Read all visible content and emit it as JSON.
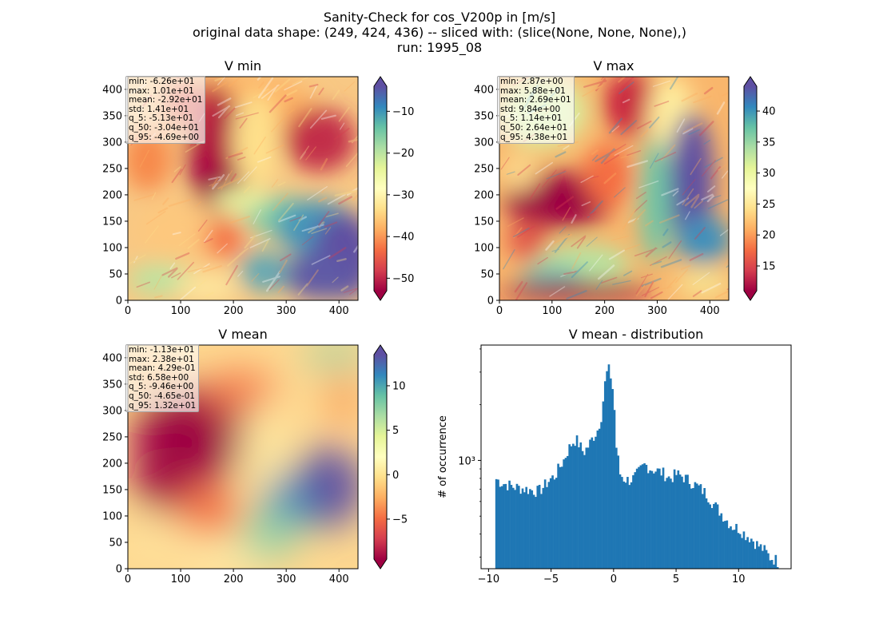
{
  "figure": {
    "suptitle": [
      "Sanity-Check for cos_V200p in [m/s]",
      "original data shape: (249, 424, 436) -- sliced with: (slice(None, None, None),)",
      "run: 1995_08"
    ]
  },
  "colormap": {
    "name": "Spectral",
    "stops": [
      "#9e0142",
      "#d53e4f",
      "#f46d43",
      "#fdae61",
      "#fee08b",
      "#ffffbf",
      "#e6f598",
      "#abdda4",
      "#66c2a5",
      "#3288bd",
      "#5e4fa2"
    ]
  },
  "hist_color": "#1f77b4",
  "chart_data": [
    {
      "type": "heatmap",
      "title": "V min",
      "xlim": [
        0,
        436
      ],
      "ylim": [
        0,
        424
      ],
      "xticks": [
        "0",
        "100",
        "200",
        "300",
        "400"
      ],
      "yticks": [
        "0",
        "50",
        "100",
        "150",
        "200",
        "250",
        "300",
        "350",
        "400"
      ],
      "colorbar": {
        "range": [
          -53,
          -4
        ],
        "ticks": [
          "−10",
          "−20",
          "−30",
          "−40",
          "−50"
        ],
        "tick_values": [
          -10,
          -20,
          -30,
          -40,
          -50
        ],
        "extend": "both"
      },
      "stats": [
        "min: -6.26e+01",
        "max: 1.01e+01",
        "mean: -2.92e+01",
        "std: 1.41e+01",
        "q_5: -5.13e+01",
        "q_50: -3.04e+01",
        "q_95: -4.69e+00"
      ]
    },
    {
      "type": "heatmap",
      "title": "V max",
      "xlim": [
        0,
        436
      ],
      "ylim": [
        0,
        424
      ],
      "xticks": [
        "0",
        "100",
        "200",
        "300",
        "400"
      ],
      "yticks": [
        "0",
        "50",
        "100",
        "150",
        "200",
        "250",
        "300",
        "350",
        "400"
      ],
      "colorbar": {
        "range": [
          11,
          44
        ],
        "ticks": [
          "40",
          "35",
          "30",
          "25",
          "20",
          "15"
        ],
        "tick_values": [
          40,
          35,
          30,
          25,
          20,
          15
        ],
        "extend": "both"
      },
      "stats": [
        "min: 2.87e+00",
        "max: 5.88e+01",
        "mean: 2.69e+01",
        "std: 9.84e+00",
        "q_5: 1.14e+01",
        "q_50: 2.64e+01",
        "q_95: 4.38e+01"
      ]
    },
    {
      "type": "heatmap",
      "title": "V mean",
      "xlim": [
        0,
        436
      ],
      "ylim": [
        0,
        424
      ],
      "xticks": [
        "0",
        "100",
        "200",
        "300",
        "400"
      ],
      "yticks": [
        "0",
        "50",
        "100",
        "150",
        "200",
        "250",
        "300",
        "350",
        "400"
      ],
      "colorbar": {
        "range": [
          -9.5,
          13.5
        ],
        "ticks": [
          "10",
          "5",
          "0",
          "−5"
        ],
        "tick_values": [
          10,
          5,
          0,
          -5
        ],
        "extend": "both"
      },
      "stats": [
        "min: -1.13e+01",
        "max: 2.38e+01",
        "mean: 4.29e-01",
        "std: 6.58e+00",
        "q_5: -9.46e+00",
        "q_50: -4.65e-01",
        "q_95: 1.32e+01"
      ]
    },
    {
      "type": "bar",
      "title": "V mean - distribution",
      "ylabel": "# of occurrence",
      "yscale": "log",
      "xlim": [
        -10.6,
        14.2
      ],
      "ylim": [
        260,
        4200
      ],
      "xticks": [
        "−10",
        "−5",
        "0",
        "5",
        "10"
      ],
      "xtick_values": [
        -10,
        -5,
        0,
        5,
        10
      ],
      "yticks_major": [
        "10³"
      ],
      "yticks_major_values": [
        1000
      ],
      "yticks_minor_values": [
        300,
        400,
        500,
        600,
        700,
        800,
        900,
        2000,
        3000,
        4000
      ],
      "bins": {
        "start": -9.46,
        "end": 13.2,
        "width": 0.15
      },
      "anchors_x": [
        -9.46,
        -9.0,
        -8.5,
        -8.0,
        -7.5,
        -7.0,
        -6.5,
        -6.0,
        -5.6,
        -5.3,
        -5.0,
        -4.7,
        -4.4,
        -4.0,
        -3.6,
        -3.3,
        -3.0,
        -2.7,
        -2.4,
        -2.0,
        -1.6,
        -1.3,
        -1.0,
        -0.8,
        -0.6,
        -0.4,
        -0.2,
        0.0,
        0.2,
        0.5,
        0.8,
        1.2,
        1.6,
        2.0,
        2.5,
        3.0,
        3.5,
        4.0,
        4.5,
        5.0,
        5.5,
        6.0,
        6.5,
        7.0,
        7.5,
        8.0,
        8.5,
        9.0,
        9.5,
        10.0,
        10.5,
        11.0,
        11.5,
        12.0,
        12.5,
        13.0,
        13.2
      ],
      "anchors_y": [
        800,
        760,
        740,
        720,
        710,
        700,
        690,
        680,
        720,
        760,
        800,
        820,
        900,
        1000,
        1150,
        1250,
        1300,
        1200,
        1100,
        1200,
        1350,
        1450,
        1700,
        2200,
        2900,
        3100,
        2800,
        2200,
        1200,
        850,
        800,
        780,
        800,
        860,
        950,
        900,
        880,
        850,
        800,
        840,
        820,
        780,
        740,
        700,
        650,
        580,
        530,
        480,
        440,
        430,
        400,
        380,
        350,
        330,
        300,
        290,
        280
      ]
    }
  ]
}
